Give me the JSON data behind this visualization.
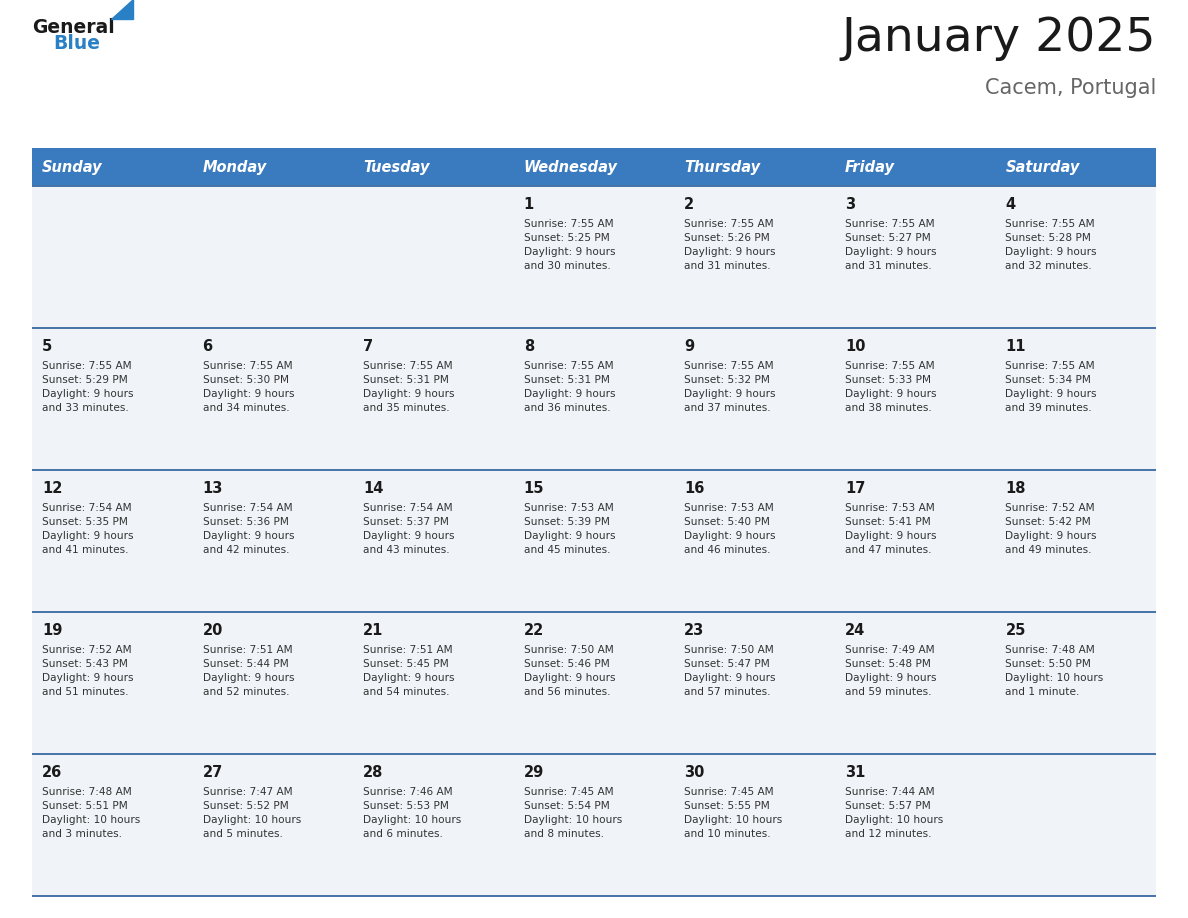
{
  "title": "January 2025",
  "subtitle": "Cacem, Portugal",
  "days_of_week": [
    "Sunday",
    "Monday",
    "Tuesday",
    "Wednesday",
    "Thursday",
    "Friday",
    "Saturday"
  ],
  "header_bg": "#3a7abf",
  "header_text": "#ffffff",
  "row_bg": "#f0f4f8",
  "cell_text_color": "#333333",
  "day_num_color": "#1a1a1a",
  "divider_color": "#4472a8",
  "title_color": "#1a1a1a",
  "subtitle_color": "#666666",
  "logo_general_color": "#1a1a1a",
  "logo_blue_color": "#2980c4",
  "weeks": [
    [
      {
        "day": 0,
        "info": ""
      },
      {
        "day": 0,
        "info": ""
      },
      {
        "day": 0,
        "info": ""
      },
      {
        "day": 1,
        "info": "Sunrise: 7:55 AM\nSunset: 5:25 PM\nDaylight: 9 hours\nand 30 minutes."
      },
      {
        "day": 2,
        "info": "Sunrise: 7:55 AM\nSunset: 5:26 PM\nDaylight: 9 hours\nand 31 minutes."
      },
      {
        "day": 3,
        "info": "Sunrise: 7:55 AM\nSunset: 5:27 PM\nDaylight: 9 hours\nand 31 minutes."
      },
      {
        "day": 4,
        "info": "Sunrise: 7:55 AM\nSunset: 5:28 PM\nDaylight: 9 hours\nand 32 minutes."
      }
    ],
    [
      {
        "day": 5,
        "info": "Sunrise: 7:55 AM\nSunset: 5:29 PM\nDaylight: 9 hours\nand 33 minutes."
      },
      {
        "day": 6,
        "info": "Sunrise: 7:55 AM\nSunset: 5:30 PM\nDaylight: 9 hours\nand 34 minutes."
      },
      {
        "day": 7,
        "info": "Sunrise: 7:55 AM\nSunset: 5:31 PM\nDaylight: 9 hours\nand 35 minutes."
      },
      {
        "day": 8,
        "info": "Sunrise: 7:55 AM\nSunset: 5:31 PM\nDaylight: 9 hours\nand 36 minutes."
      },
      {
        "day": 9,
        "info": "Sunrise: 7:55 AM\nSunset: 5:32 PM\nDaylight: 9 hours\nand 37 minutes."
      },
      {
        "day": 10,
        "info": "Sunrise: 7:55 AM\nSunset: 5:33 PM\nDaylight: 9 hours\nand 38 minutes."
      },
      {
        "day": 11,
        "info": "Sunrise: 7:55 AM\nSunset: 5:34 PM\nDaylight: 9 hours\nand 39 minutes."
      }
    ],
    [
      {
        "day": 12,
        "info": "Sunrise: 7:54 AM\nSunset: 5:35 PM\nDaylight: 9 hours\nand 41 minutes."
      },
      {
        "day": 13,
        "info": "Sunrise: 7:54 AM\nSunset: 5:36 PM\nDaylight: 9 hours\nand 42 minutes."
      },
      {
        "day": 14,
        "info": "Sunrise: 7:54 AM\nSunset: 5:37 PM\nDaylight: 9 hours\nand 43 minutes."
      },
      {
        "day": 15,
        "info": "Sunrise: 7:53 AM\nSunset: 5:39 PM\nDaylight: 9 hours\nand 45 minutes."
      },
      {
        "day": 16,
        "info": "Sunrise: 7:53 AM\nSunset: 5:40 PM\nDaylight: 9 hours\nand 46 minutes."
      },
      {
        "day": 17,
        "info": "Sunrise: 7:53 AM\nSunset: 5:41 PM\nDaylight: 9 hours\nand 47 minutes."
      },
      {
        "day": 18,
        "info": "Sunrise: 7:52 AM\nSunset: 5:42 PM\nDaylight: 9 hours\nand 49 minutes."
      }
    ],
    [
      {
        "day": 19,
        "info": "Sunrise: 7:52 AM\nSunset: 5:43 PM\nDaylight: 9 hours\nand 51 minutes."
      },
      {
        "day": 20,
        "info": "Sunrise: 7:51 AM\nSunset: 5:44 PM\nDaylight: 9 hours\nand 52 minutes."
      },
      {
        "day": 21,
        "info": "Sunrise: 7:51 AM\nSunset: 5:45 PM\nDaylight: 9 hours\nand 54 minutes."
      },
      {
        "day": 22,
        "info": "Sunrise: 7:50 AM\nSunset: 5:46 PM\nDaylight: 9 hours\nand 56 minutes."
      },
      {
        "day": 23,
        "info": "Sunrise: 7:50 AM\nSunset: 5:47 PM\nDaylight: 9 hours\nand 57 minutes."
      },
      {
        "day": 24,
        "info": "Sunrise: 7:49 AM\nSunset: 5:48 PM\nDaylight: 9 hours\nand 59 minutes."
      },
      {
        "day": 25,
        "info": "Sunrise: 7:48 AM\nSunset: 5:50 PM\nDaylight: 10 hours\nand 1 minute."
      }
    ],
    [
      {
        "day": 26,
        "info": "Sunrise: 7:48 AM\nSunset: 5:51 PM\nDaylight: 10 hours\nand 3 minutes."
      },
      {
        "day": 27,
        "info": "Sunrise: 7:47 AM\nSunset: 5:52 PM\nDaylight: 10 hours\nand 5 minutes."
      },
      {
        "day": 28,
        "info": "Sunrise: 7:46 AM\nSunset: 5:53 PM\nDaylight: 10 hours\nand 6 minutes."
      },
      {
        "day": 29,
        "info": "Sunrise: 7:45 AM\nSunset: 5:54 PM\nDaylight: 10 hours\nand 8 minutes."
      },
      {
        "day": 30,
        "info": "Sunrise: 7:45 AM\nSunset: 5:55 PM\nDaylight: 10 hours\nand 10 minutes."
      },
      {
        "day": 31,
        "info": "Sunrise: 7:44 AM\nSunset: 5:57 PM\nDaylight: 10 hours\nand 12 minutes."
      },
      {
        "day": 0,
        "info": ""
      }
    ]
  ]
}
